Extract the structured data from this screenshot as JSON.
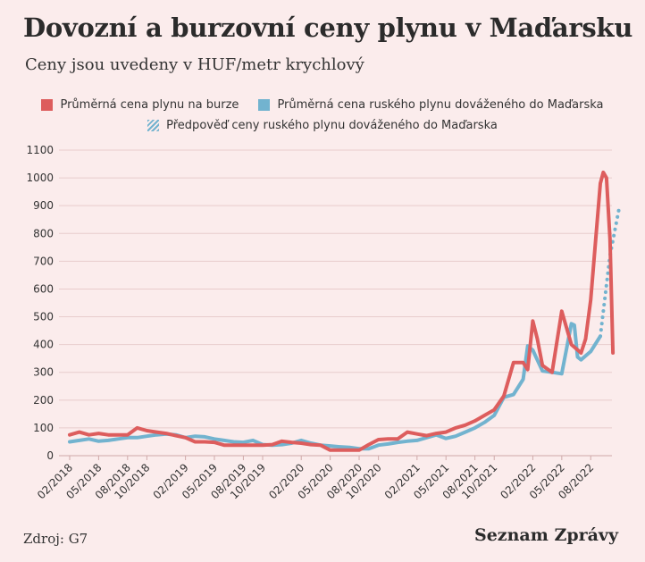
{
  "title": "Dovozní a burzovní ceny plynu v Maďarsku",
  "subtitle": "Ceny jsou uvedeny v HUF/metr krychlový",
  "source": "Zdroj: G7",
  "brand": "Seznam Zprávy",
  "colors": {
    "exchange": "#dd5d5d",
    "import": "#72b3cf",
    "forecast": "#72b3cf",
    "grid": "#e8cccc",
    "background": "#fbecec"
  },
  "chart_data": {
    "type": "line",
    "title": "Dovozní a burzovní ceny plynu v Maďarsku",
    "subtitle": "Ceny jsou uvedeny v HUF/metr krychlový",
    "ylim": [
      0,
      1100
    ],
    "yticks": [
      0,
      100,
      200,
      300,
      400,
      500,
      600,
      700,
      800,
      900,
      1000,
      1100
    ],
    "xlim": [
      "2018-02",
      "2022-08"
    ],
    "xticks": [
      "02/2018",
      "05/2018",
      "08/2018",
      "10/2018",
      "02/2019",
      "05/2019",
      "08/2019",
      "10/2019",
      "02/2020",
      "05/2020",
      "08/2020",
      "10/2020",
      "02/2021",
      "05/2021",
      "08/2021",
      "10/2021",
      "02/2022",
      "05/2022",
      "08/2022"
    ],
    "grid": true,
    "legend_position": "top",
    "series": [
      {
        "name": "Průměrná cena plynu na burze",
        "style": "solid",
        "points": [
          [
            "2018-02",
            75
          ],
          [
            "2018-03",
            85
          ],
          [
            "2018-04",
            75
          ],
          [
            "2018-05",
            80
          ],
          [
            "2018-06",
            75
          ],
          [
            "2018-07",
            75
          ],
          [
            "2018-08",
            75
          ],
          [
            "2018-09",
            100
          ],
          [
            "2018-10",
            90
          ],
          [
            "2018-11",
            85
          ],
          [
            "2018-12",
            80
          ],
          [
            "2019-01",
            72
          ],
          [
            "2019-02",
            65
          ],
          [
            "2019-03",
            50
          ],
          [
            "2019-04",
            50
          ],
          [
            "2019-05",
            48
          ],
          [
            "2019-06",
            38
          ],
          [
            "2019-07",
            38
          ],
          [
            "2019-08",
            38
          ],
          [
            "2019-09",
            38
          ],
          [
            "2019-10",
            38
          ],
          [
            "2019-11",
            40
          ],
          [
            "2019-12",
            52
          ],
          [
            "2020-01",
            48
          ],
          [
            "2020-02",
            45
          ],
          [
            "2020-03",
            40
          ],
          [
            "2020-04",
            38
          ],
          [
            "2020-05",
            20
          ],
          [
            "2020-06",
            20
          ],
          [
            "2020-07",
            20
          ],
          [
            "2020-08",
            20
          ],
          [
            "2020-09",
            40
          ],
          [
            "2020-10",
            58
          ],
          [
            "2020-11",
            60
          ],
          [
            "2020-12",
            60
          ],
          [
            "2021-01",
            85
          ],
          [
            "2021-02",
            78
          ],
          [
            "2021-03",
            72
          ],
          [
            "2021-04",
            80
          ],
          [
            "2021-05",
            85
          ],
          [
            "2021-06",
            100
          ],
          [
            "2021-07",
            110
          ],
          [
            "2021-08",
            125
          ],
          [
            "2021-09",
            145
          ],
          [
            "2021-10",
            165
          ],
          [
            "2021-11",
            215
          ],
          [
            "2021-12",
            335
          ],
          [
            "2022-01",
            335
          ],
          [
            "2022-01-15",
            310
          ],
          [
            "2022-02",
            485
          ],
          [
            "2022-02-15",
            420
          ],
          [
            "2022-03",
            325
          ],
          [
            "2022-04",
            300
          ],
          [
            "2022-05",
            520
          ],
          [
            "2022-06",
            400
          ],
          [
            "2022-07",
            370
          ],
          [
            "2022-07-15",
            420
          ],
          [
            "2022-08",
            560
          ],
          [
            "2022-09",
            980
          ],
          [
            "2022-09-10",
            1020
          ],
          [
            "2022-09-20",
            1000
          ],
          [
            "2022-10",
            780
          ],
          [
            "2022-10-10",
            370
          ]
        ]
      },
      {
        "name": "Průměrná cena ruského plynu dováženého do Maďarska",
        "style": "solid",
        "points": [
          [
            "2018-02",
            50
          ],
          [
            "2018-03",
            55
          ],
          [
            "2018-04",
            60
          ],
          [
            "2018-05",
            52
          ],
          [
            "2018-06",
            55
          ],
          [
            "2018-07",
            60
          ],
          [
            "2018-08",
            65
          ],
          [
            "2018-09",
            65
          ],
          [
            "2018-10",
            70
          ],
          [
            "2018-11",
            75
          ],
          [
            "2018-12",
            78
          ],
          [
            "2019-01",
            75
          ],
          [
            "2019-02",
            65
          ],
          [
            "2019-03",
            70
          ],
          [
            "2019-04",
            68
          ],
          [
            "2019-05",
            60
          ],
          [
            "2019-06",
            55
          ],
          [
            "2019-07",
            50
          ],
          [
            "2019-08",
            48
          ],
          [
            "2019-09",
            55
          ],
          [
            "2019-10",
            40
          ],
          [
            "2019-11",
            38
          ],
          [
            "2019-12",
            40
          ],
          [
            "2020-01",
            45
          ],
          [
            "2020-02",
            55
          ],
          [
            "2020-03",
            45
          ],
          [
            "2020-04",
            38
          ],
          [
            "2020-05",
            35
          ],
          [
            "2020-06",
            32
          ],
          [
            "2020-07",
            30
          ],
          [
            "2020-08",
            25
          ],
          [
            "2020-09",
            25
          ],
          [
            "2020-10",
            38
          ],
          [
            "2020-11",
            42
          ],
          [
            "2020-12",
            48
          ],
          [
            "2021-01",
            52
          ],
          [
            "2021-02",
            55
          ],
          [
            "2021-03",
            65
          ],
          [
            "2021-04",
            75
          ],
          [
            "2021-05",
            62
          ],
          [
            "2021-06",
            70
          ],
          [
            "2021-07",
            85
          ],
          [
            "2021-08",
            100
          ],
          [
            "2021-09",
            120
          ],
          [
            "2021-10",
            145
          ],
          [
            "2021-11",
            210
          ],
          [
            "2021-12",
            220
          ],
          [
            "2022-01",
            275
          ],
          [
            "2022-01-15",
            395
          ],
          [
            "2022-02",
            380
          ],
          [
            "2022-03",
            305
          ],
          [
            "2022-04",
            300
          ],
          [
            "2022-05",
            295
          ],
          [
            "2022-06",
            475
          ],
          [
            "2022-06-10",
            470
          ],
          [
            "2022-06-20",
            355
          ],
          [
            "2022-07",
            345
          ],
          [
            "2022-08",
            375
          ],
          [
            "2022-09",
            430
          ]
        ]
      },
      {
        "name": "Předpověď ceny ruského plynu dováženého do Maďarska",
        "style": "dashed",
        "points": [
          [
            "2022-09",
            430
          ],
          [
            "2022-10",
            720
          ],
          [
            "2022-11",
            900
          ]
        ]
      }
    ]
  }
}
